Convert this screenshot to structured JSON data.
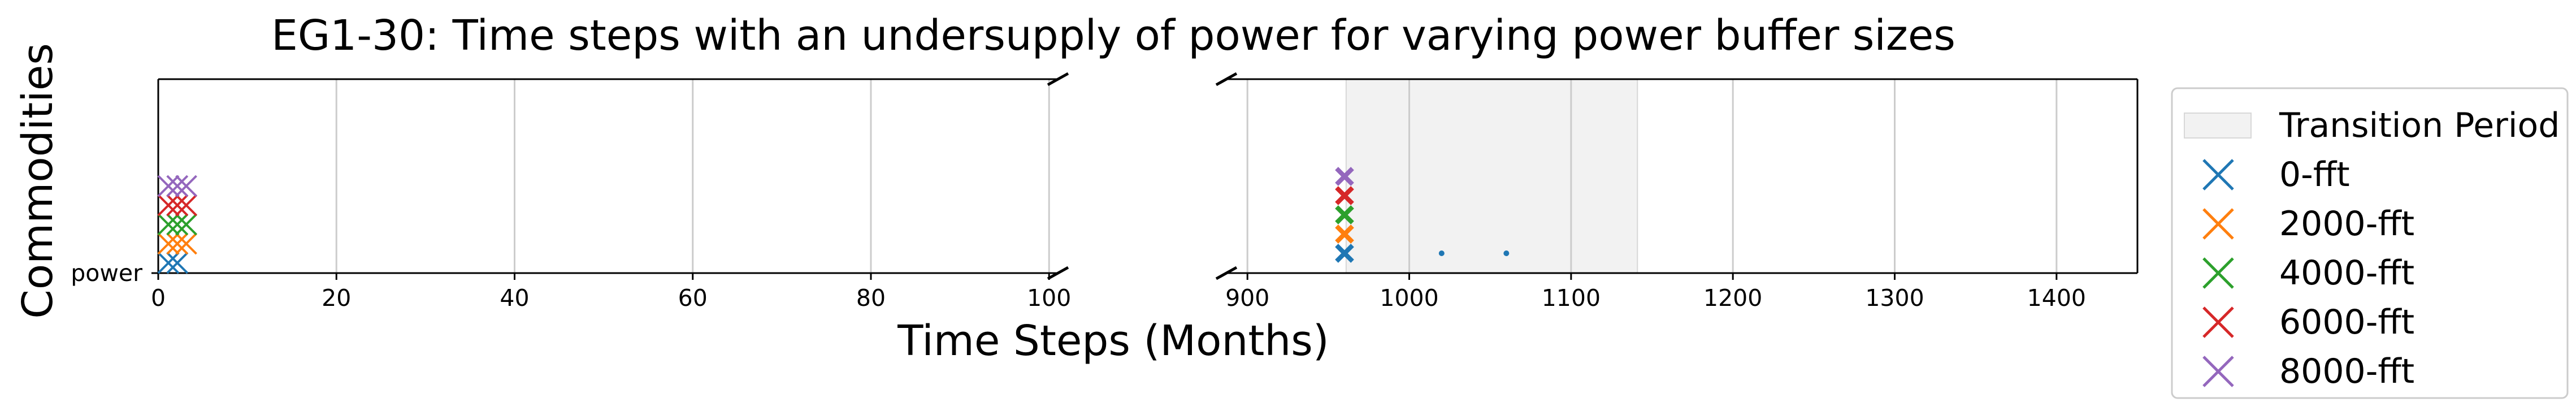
{
  "chart_data": {
    "type": "scatter",
    "title": "EG1-30: Time steps with an undersupply of power for varying power buffer sizes",
    "xlabel": "Time Steps (Months)",
    "ylabel": "Commodities",
    "categories": [
      "power"
    ],
    "broken_axis": true,
    "panels": [
      {
        "xlim": [
          0,
          101
        ],
        "xticks": [
          0,
          20,
          40,
          60,
          80,
          100
        ]
      },
      {
        "xlim": [
          887,
          1450
        ],
        "xticks": [
          900,
          1000,
          1100,
          1200,
          1300,
          1400
        ]
      }
    ],
    "transition_period": {
      "label": "Transition Period",
      "start": 961,
      "end": 1141
    },
    "grid": true,
    "legend_position": "right",
    "series": [
      {
        "name": "0-fft",
        "color": "#1f77b4",
        "points": [
          {
            "x": 0,
            "y": "power"
          },
          {
            "x": 1,
            "y": "power"
          },
          {
            "x": 960,
            "y": "power"
          },
          {
            "x": 1020,
            "y": "power"
          },
          {
            "x": 1060,
            "y": "power"
          }
        ]
      },
      {
        "name": "2000-fft",
        "color": "#ff7f0e",
        "points": [
          {
            "x": 0,
            "y": "power"
          },
          {
            "x": 1,
            "y": "power"
          },
          {
            "x": 2,
            "y": "power"
          },
          {
            "x": 960,
            "y": "power"
          }
        ]
      },
      {
        "name": "4000-fft",
        "color": "#2ca02c",
        "points": [
          {
            "x": 0,
            "y": "power"
          },
          {
            "x": 1,
            "y": "power"
          },
          {
            "x": 2,
            "y": "power"
          },
          {
            "x": 960,
            "y": "power"
          }
        ]
      },
      {
        "name": "6000-fft",
        "color": "#d62728",
        "points": [
          {
            "x": 0,
            "y": "power"
          },
          {
            "x": 1,
            "y": "power"
          },
          {
            "x": 2,
            "y": "power"
          },
          {
            "x": 960,
            "y": "power"
          }
        ]
      },
      {
        "name": "8000-fft",
        "color": "#9467bd",
        "points": [
          {
            "x": 0,
            "y": "power"
          },
          {
            "x": 1,
            "y": "power"
          },
          {
            "x": 2,
            "y": "power"
          },
          {
            "x": 960,
            "y": "power"
          }
        ]
      }
    ]
  }
}
